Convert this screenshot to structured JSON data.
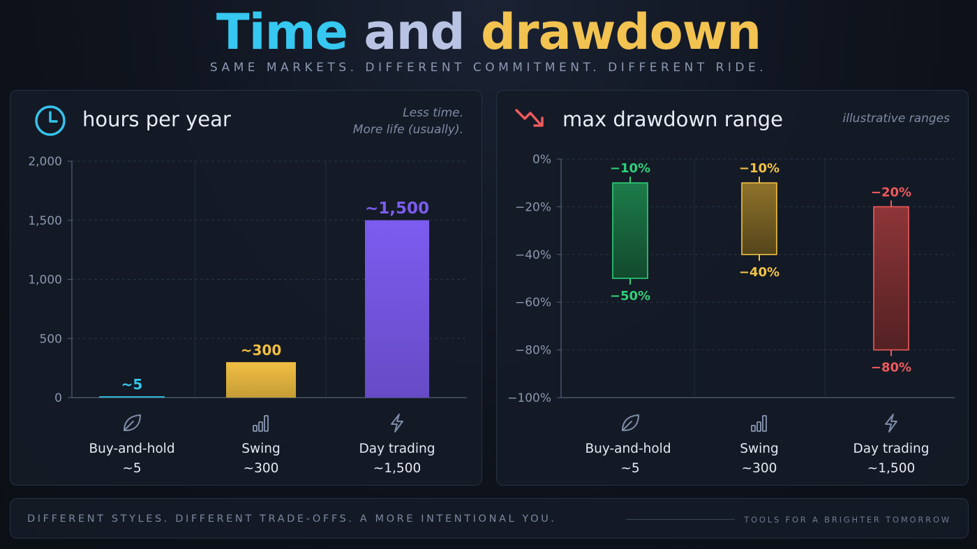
{
  "header": {
    "title_word1": "Time",
    "title_word2": "and",
    "title_word3": "drawdown",
    "subtitle": "SAME MARKETS. DIFFERENT COMMITMENT. DIFFERENT RIDE."
  },
  "colors": {
    "buy_and_hold": "#35c6ec",
    "swing": "#f0be42",
    "day_trading": "#7c5cf0",
    "dd_buy_and_hold": "#2fd07a",
    "dd_swing": "#f2c245",
    "dd_day_trading": "#f0595c"
  },
  "panels": {
    "hours": {
      "title": "hours per year",
      "note_line1": "Less time.",
      "note_line2": "More life (usually).",
      "icon": "clock-icon"
    },
    "drawdown": {
      "title": "max drawdown range",
      "note": "illustrative ranges",
      "icon": "trend-down-icon"
    }
  },
  "chart_data": [
    {
      "type": "bar",
      "categories": [
        "Buy-and-hold",
        "Swing",
        "Day trading"
      ],
      "values": [
        5,
        300,
        1500
      ],
      "data_labels": [
        "~5",
        "~300",
        "~1,500"
      ],
      "sub_labels": [
        "~5",
        "~300",
        "~1,500"
      ],
      "category_icons": [
        "leaf-icon",
        "bars-icon",
        "bolt-icon"
      ],
      "ylim": [
        0,
        2000
      ],
      "yticks": [
        0,
        500,
        1000,
        1500,
        2000
      ],
      "ytick_labels": [
        "0",
        "500",
        "1,000",
        "1,500",
        "2,000"
      ],
      "grid": true
    },
    {
      "type": "range-bar",
      "categories": [
        "Buy-and-hold",
        "Swing",
        "Day trading"
      ],
      "ranges": [
        [
          -10,
          -50
        ],
        [
          -10,
          -40
        ],
        [
          -20,
          -80
        ]
      ],
      "top_labels": [
        "−10%",
        "−10%",
        "−20%"
      ],
      "bottom_labels": [
        "−50%",
        "−40%",
        "−80%"
      ],
      "sub_labels": [
        "~5",
        "~300",
        "~1,500"
      ],
      "category_icons": [
        "leaf-icon",
        "bars-icon",
        "bolt-icon"
      ],
      "ylim": [
        -100,
        0
      ],
      "yticks": [
        0,
        -20,
        -40,
        -60,
        -80,
        -100
      ],
      "ytick_labels": [
        "0%",
        "−20%",
        "−40%",
        "−60%",
        "−80%",
        "−100%"
      ],
      "grid": true
    }
  ],
  "footer": {
    "left": "DIFFERENT STYLES. DIFFERENT TRADE-OFFS. A MORE INTENTIONAL YOU.",
    "right": "TOOLS FOR A BRIGHTER TOMORROW"
  }
}
